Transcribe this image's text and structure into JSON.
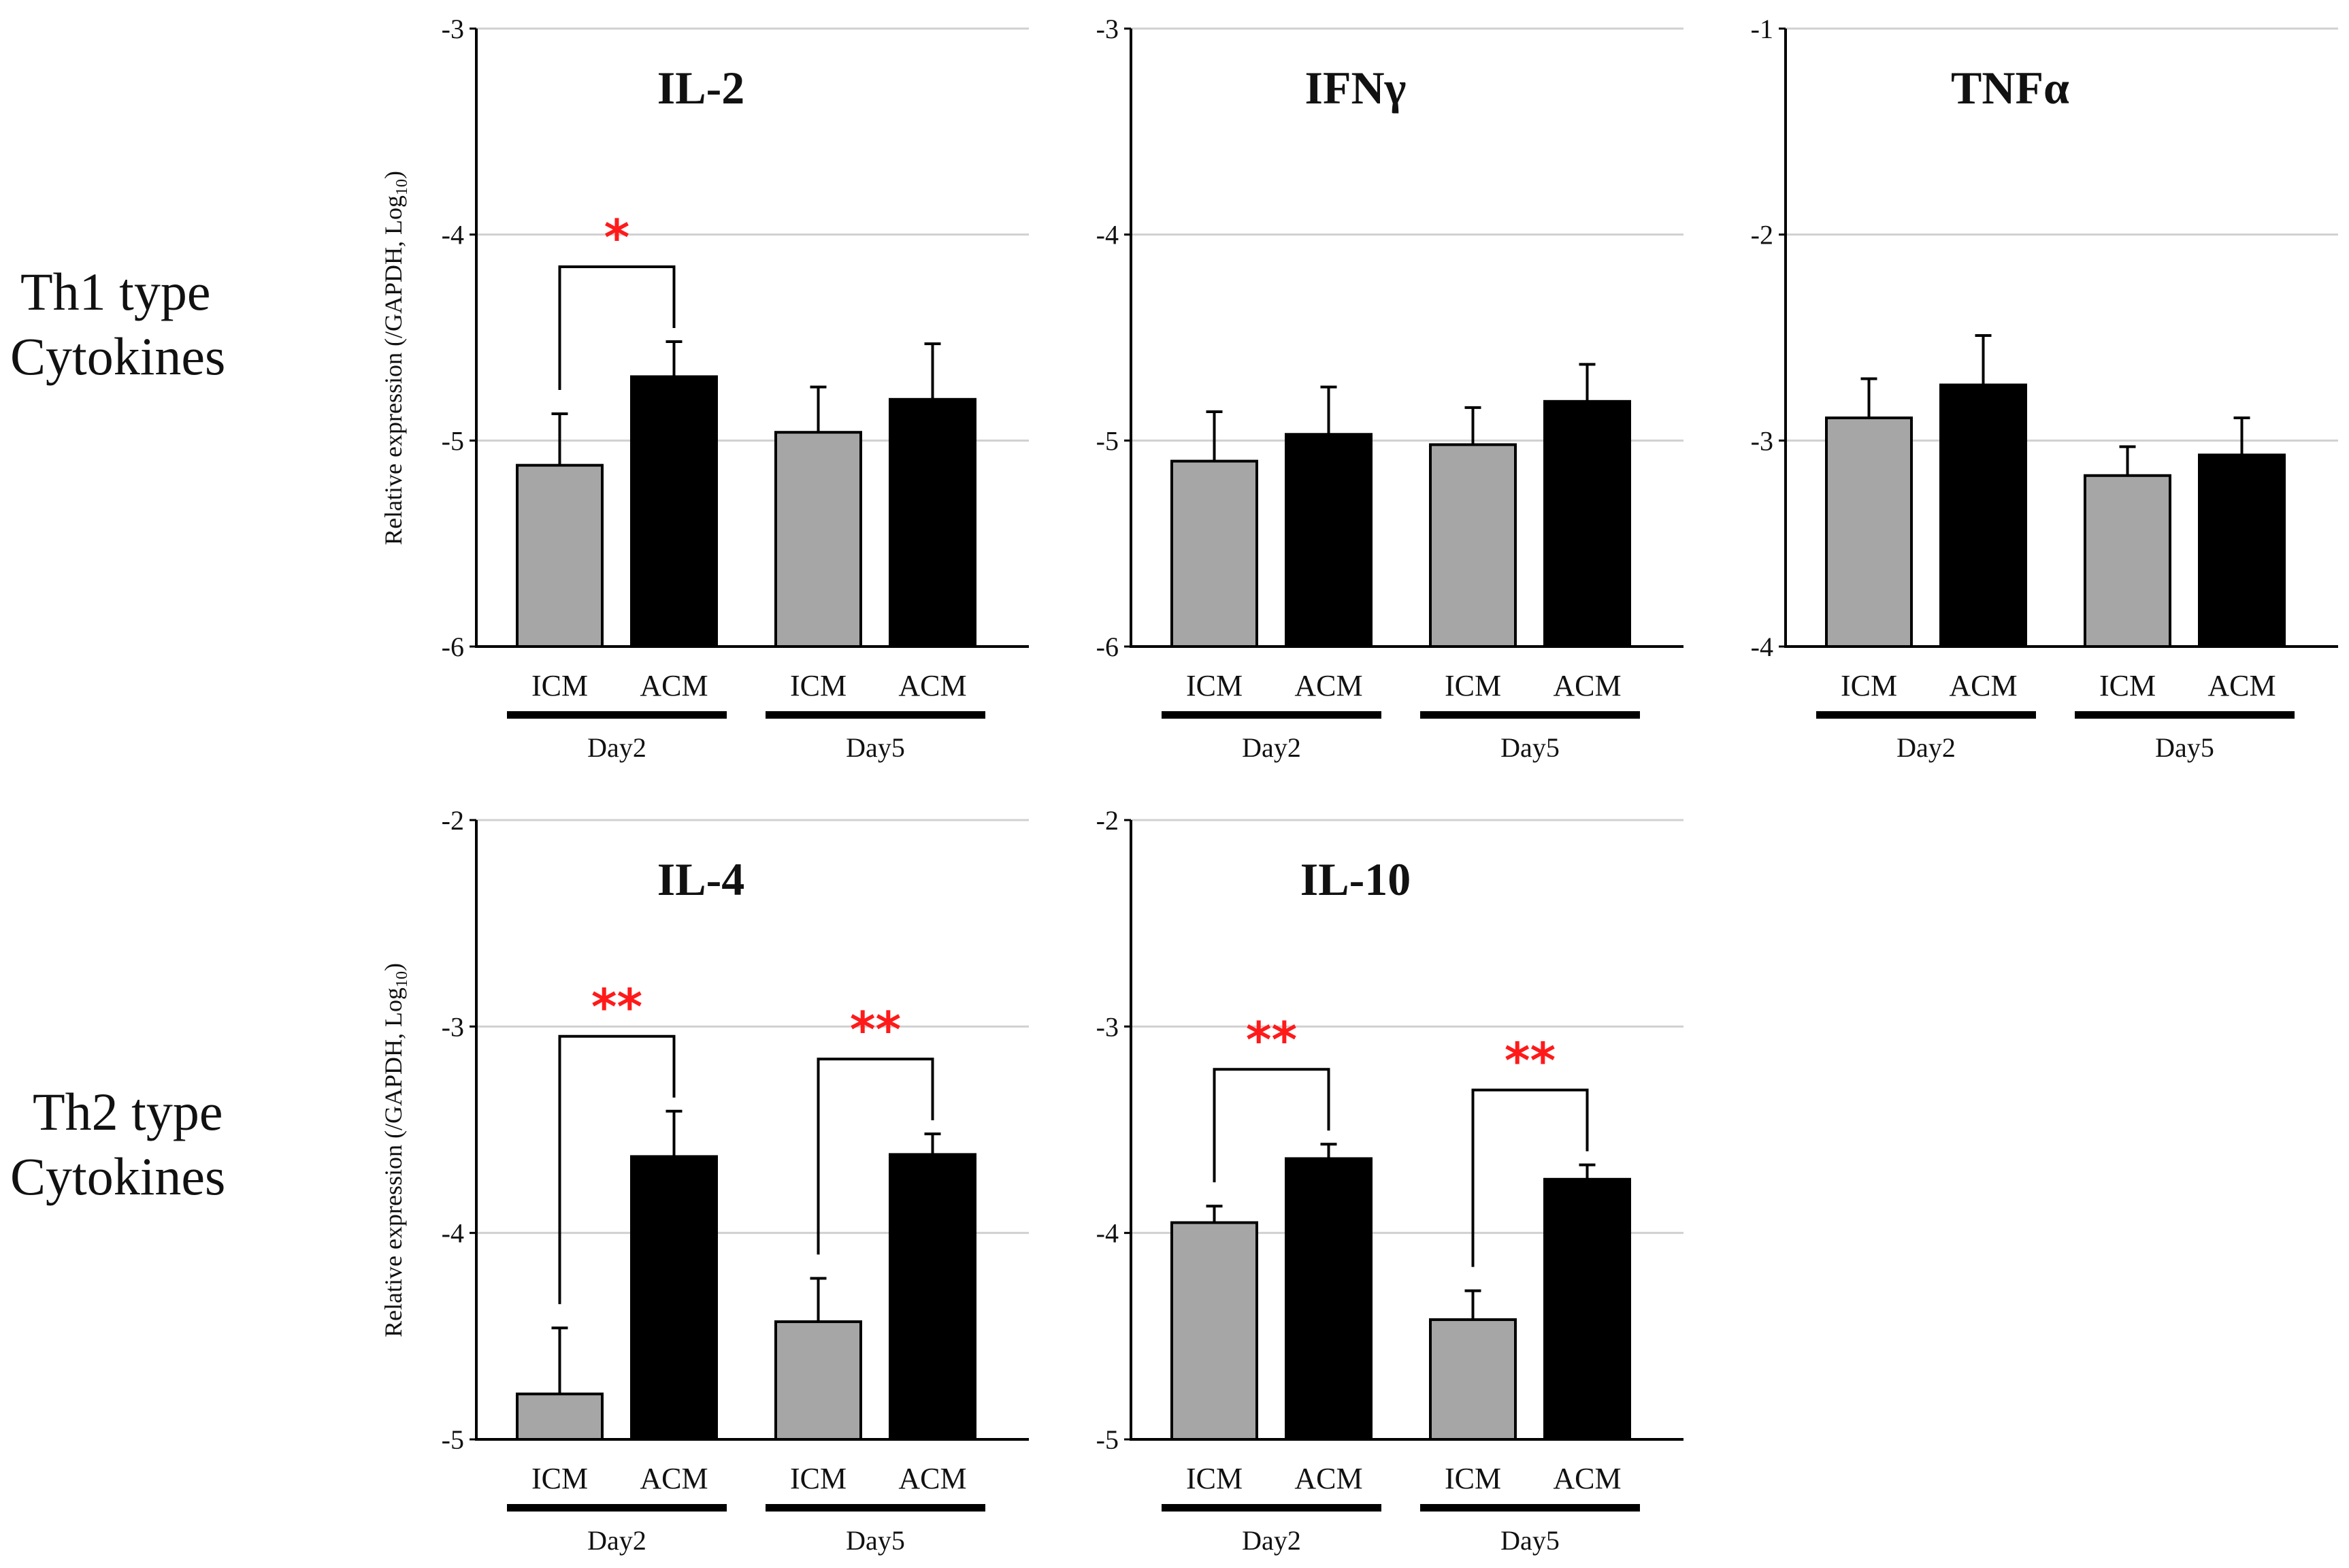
{
  "row_labels": [
    {
      "line1": "Th1 type",
      "line2": "Cytokines"
    },
    {
      "line1": "Th2 type",
      "line2": "Cytokines"
    }
  ],
  "ylabel_main": "Relative expression (/GAPDH, Log",
  "ylabel_sub": "10",
  "ylabel_close": ")",
  "colors": {
    "ICM": "#a6a6a6",
    "ACM": "#000000",
    "grid": "#d0d0d0",
    "sig": "#ff1a1a"
  },
  "chart_data": [
    {
      "type": "bar",
      "title": "IL-2",
      "ylim": [
        -6,
        -3
      ],
      "yticks": [
        -3,
        -4,
        -5,
        -6
      ],
      "groups": [
        "Day2",
        "Day5"
      ],
      "categories": [
        "ICM",
        "ACM"
      ],
      "series": [
        {
          "name": "ICM",
          "values": [
            -5.12,
            -4.96
          ],
          "errors": [
            0.25,
            0.22
          ]
        },
        {
          "name": "ACM",
          "values": [
            -4.69,
            -4.8
          ],
          "errors": [
            0.17,
            0.27
          ]
        }
      ],
      "significance": [
        {
          "group": 0,
          "label": "*"
        }
      ]
    },
    {
      "type": "bar",
      "title": "IFNγ",
      "ylim": [
        -6,
        -3
      ],
      "yticks": [
        -3,
        -4,
        -5,
        -6
      ],
      "groups": [
        "Day2",
        "Day5"
      ],
      "categories": [
        "ICM",
        "ACM"
      ],
      "series": [
        {
          "name": "ICM",
          "values": [
            -5.1,
            -5.02
          ],
          "errors": [
            0.24,
            0.18
          ]
        },
        {
          "name": "ACM",
          "values": [
            -4.97,
            -4.81
          ],
          "errors": [
            0.23,
            0.18
          ]
        }
      ],
      "significance": []
    },
    {
      "type": "bar",
      "title": "TNFα",
      "ylim": [
        -4,
        -1
      ],
      "yticks": [
        -1,
        -2,
        -3,
        -4
      ],
      "groups": [
        "Day2",
        "Day5"
      ],
      "categories": [
        "ICM",
        "ACM"
      ],
      "series": [
        {
          "name": "ICM",
          "values": [
            -2.89,
            -3.17
          ],
          "errors": [
            0.19,
            0.14
          ]
        },
        {
          "name": "ACM",
          "values": [
            -2.73,
            -3.07
          ],
          "errors": [
            0.24,
            0.18
          ]
        }
      ],
      "significance": []
    },
    {
      "type": "bar",
      "title": "IL-4",
      "ylim": [
        -5,
        -2
      ],
      "yticks": [
        -2,
        -3,
        -4,
        -5
      ],
      "groups": [
        "Day2",
        "Day5"
      ],
      "categories": [
        "ICM",
        "ACM"
      ],
      "series": [
        {
          "name": "ICM",
          "values": [
            -4.78,
            -4.43
          ],
          "errors": [
            0.32,
            0.21
          ]
        },
        {
          "name": "ACM",
          "values": [
            -3.63,
            -3.62
          ],
          "errors": [
            0.22,
            0.1
          ]
        }
      ],
      "significance": [
        {
          "group": 0,
          "label": "**"
        },
        {
          "group": 1,
          "label": "**"
        }
      ]
    },
    {
      "type": "bar",
      "title": "IL-10",
      "ylim": [
        -5,
        -2
      ],
      "yticks": [
        -2,
        -3,
        -4,
        -5
      ],
      "groups": [
        "Day2",
        "Day5"
      ],
      "categories": [
        "ICM",
        "ACM"
      ],
      "series": [
        {
          "name": "ICM",
          "values": [
            -3.95,
            -4.42
          ],
          "errors": [
            0.08,
            0.14
          ]
        },
        {
          "name": "ACM",
          "values": [
            -3.64,
            -3.74
          ],
          "errors": [
            0.07,
            0.07
          ]
        }
      ],
      "significance": [
        {
          "group": 0,
          "label": "**"
        },
        {
          "group": 1,
          "label": "**"
        }
      ]
    }
  ]
}
